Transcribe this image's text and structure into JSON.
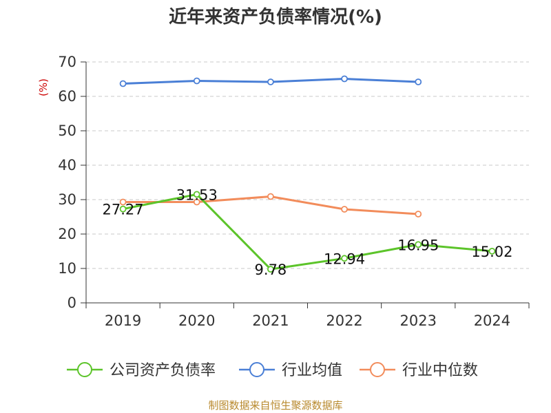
{
  "chart_data": {
    "type": "line",
    "title": "近年来资产负债率情况(%)",
    "ylabel": "(%)",
    "xlabel": "",
    "categories": [
      "2019",
      "2020",
      "2021",
      "2022",
      "2023",
      "2024"
    ],
    "ylim": [
      0,
      70
    ],
    "yticks": [
      0,
      10,
      20,
      30,
      40,
      50,
      60,
      70
    ],
    "grid": true,
    "legend_position": "bottom",
    "series": [
      {
        "name": "公司资产负债率",
        "color": "#5cc42a",
        "values": [
          27.27,
          31.53,
          9.78,
          12.94,
          16.95,
          15.02
        ],
        "labels": [
          "27.27",
          "31.53",
          "9.78",
          "12.94",
          "16.95",
          "15.02"
        ]
      },
      {
        "name": "行业均值",
        "color": "#4a7fd6",
        "values": [
          63.7,
          64.5,
          64.2,
          65.1,
          64.2,
          null
        ]
      },
      {
        "name": "行业中位数",
        "color": "#f28c5b",
        "values": [
          29.3,
          29.3,
          30.9,
          27.2,
          25.8,
          null
        ]
      }
    ]
  },
  "source_note": "制图数据来自恒生聚源数据库"
}
